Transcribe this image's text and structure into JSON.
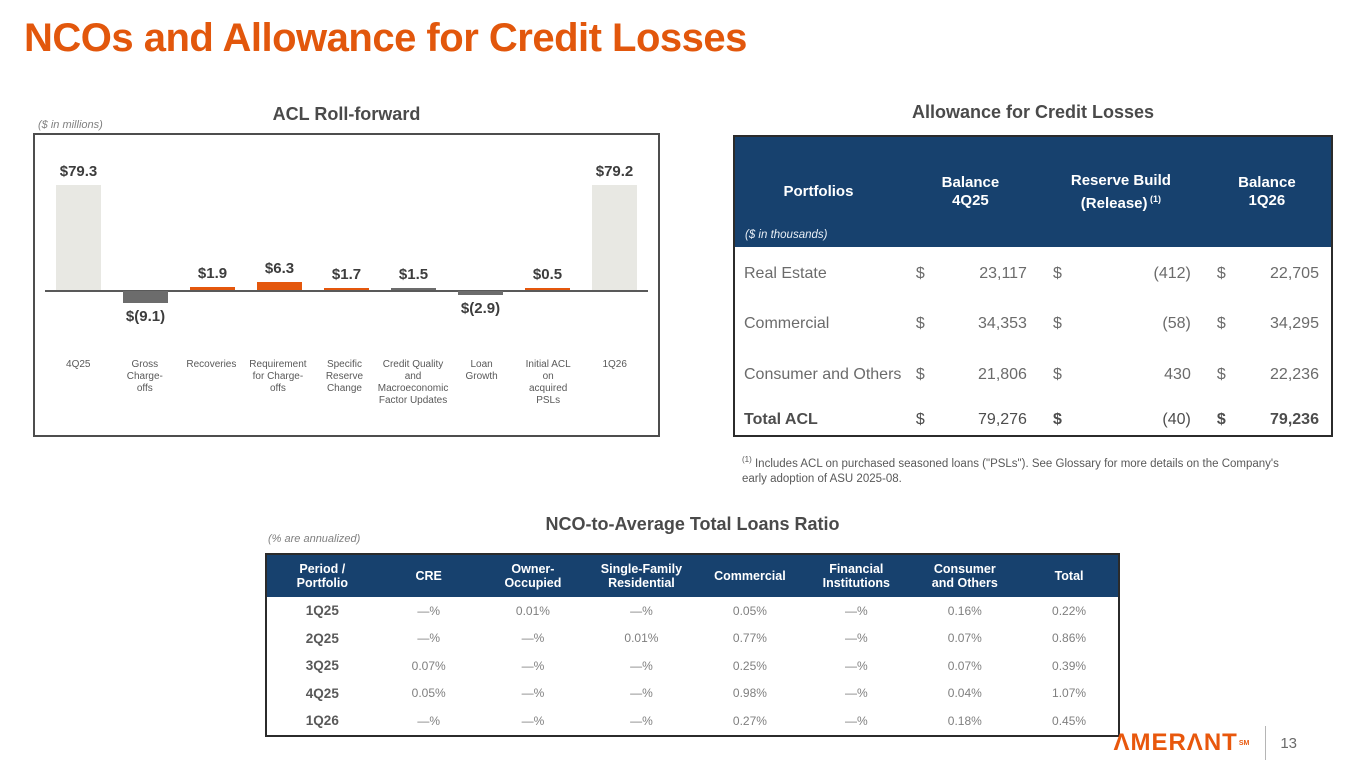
{
  "page": {
    "title": "NCOs and Allowance for Credit Losses",
    "page_number": "13",
    "brand": "ΛMERΛNT",
    "brand_sm": "SM"
  },
  "colors": {
    "accent_orange": "#E4570D",
    "navy_header": "#17416E",
    "bar_light_gray": "#E8E8E3",
    "bar_dark_gray": "#6C6C6C",
    "text_dark": "#404040",
    "text_gray": "#595959"
  },
  "chart_data": {
    "type": "bar",
    "subtype": "waterfall",
    "title": "ACL Roll-forward",
    "units_note": "($ in millions)",
    "grid": false,
    "ylim": [
      -15,
      95
    ],
    "categories": [
      "4Q25",
      "Gross Charge-offs",
      "Recoveries",
      "Requirement for Charge-offs",
      "Specific Reserve Change",
      "Credit Quality and Macroeconomic Factor Updates",
      "Loan Growth",
      "Initial ACL on acquired PSLs",
      "1Q26"
    ],
    "category_lines": [
      [
        "4Q25"
      ],
      [
        "Gross",
        "Charge-",
        "offs"
      ],
      [
        "Recoveries"
      ],
      [
        "Requirement",
        "for Charge-",
        "offs"
      ],
      [
        "Specific",
        "Reserve",
        "Change"
      ],
      [
        "Credit Quality",
        "and",
        "Macroeconomic",
        "Factor Updates"
      ],
      [
        "Loan",
        "Growth"
      ],
      [
        "Initial ACL",
        "on",
        "acquired",
        "PSLs"
      ],
      [
        "1Q26"
      ]
    ],
    "values": [
      79.3,
      -9.1,
      1.9,
      6.3,
      1.7,
      1.5,
      -2.9,
      0.5,
      79.2
    ],
    "labels": [
      "$79.3",
      "$(9.1)",
      "$1.9",
      "$6.3",
      "$1.7",
      "$1.5",
      "$(2.9)",
      "$0.5",
      "$79.2"
    ],
    "kinds": [
      "total",
      "delta",
      "delta",
      "delta",
      "delta",
      "delta",
      "delta",
      "delta",
      "total"
    ],
    "bar_colors": [
      "#E8E8E3",
      "#6C6C6C",
      "#E4570D",
      "#E4570D",
      "#E4570D",
      "#6C6C6C",
      "#6C6C6C",
      "#E4570D",
      "#E8E8E3"
    ]
  },
  "acl_table": {
    "title": "Allowance for Credit Losses",
    "units_note": "($ in thousands)",
    "currency": "$",
    "headers": [
      {
        "lines": [
          "Portfolios"
        ],
        "sup": ""
      },
      {
        "lines": [
          "Balance",
          "4Q25"
        ],
        "sup": ""
      },
      {
        "lines": [
          "Reserve Build",
          "(Release)"
        ],
        "sup": "(1)"
      },
      {
        "lines": [
          "Balance",
          "1Q26"
        ],
        "sup": ""
      }
    ],
    "rows": [
      {
        "label": "Real Estate",
        "balance_4q25": "23,117",
        "reserve": "(412)",
        "balance_1q26": "22,705",
        "is_total": false
      },
      {
        "label": "Commercial",
        "balance_4q25": "34,353",
        "reserve": "(58)",
        "balance_1q26": "34,295",
        "is_total": false
      },
      {
        "label": "Consumer and Others",
        "balance_4q25": "21,806",
        "reserve": "430",
        "balance_1q26": "22,236",
        "is_total": false
      },
      {
        "label": "Total ACL",
        "balance_4q25": "79,276",
        "reserve": "(40)",
        "balance_1q26": "79,236",
        "is_total": true
      }
    ],
    "footnote_sup": "(1)",
    "footnote": "Includes ACL on purchased seasoned loans (\"PSLs\"). See Glossary for more details on the Company's early adoption of ASU 2025-08."
  },
  "nco_table": {
    "title": "NCO-to-Average Total Loans Ratio",
    "units_note": "(% are annualized)",
    "headers": [
      [
        "Period /",
        "Portfolio"
      ],
      [
        "CRE"
      ],
      [
        "Owner-",
        "Occupied"
      ],
      [
        "Single-Family",
        "Residential"
      ],
      [
        "Commercial"
      ],
      [
        "Financial",
        "Institutions"
      ],
      [
        "Consumer",
        "and Others"
      ],
      [
        "Total"
      ]
    ],
    "rows": [
      {
        "period": "1Q25",
        "values": [
          "—%",
          "0.01%",
          "—%",
          "0.05%",
          "—%",
          "0.16%",
          "0.22%"
        ]
      },
      {
        "period": "2Q25",
        "values": [
          "—%",
          "—%",
          "0.01%",
          "0.77%",
          "—%",
          "0.07%",
          "0.86%"
        ]
      },
      {
        "period": "3Q25",
        "values": [
          "0.07%",
          "—%",
          "—%",
          "0.25%",
          "—%",
          "0.07%",
          "0.39%"
        ]
      },
      {
        "period": "4Q25",
        "values": [
          "0.05%",
          "—%",
          "—%",
          "0.98%",
          "—%",
          "0.04%",
          "1.07%"
        ]
      },
      {
        "period": "1Q26",
        "values": [
          "—%",
          "—%",
          "—%",
          "0.27%",
          "—%",
          "0.18%",
          "0.45%"
        ]
      }
    ]
  }
}
